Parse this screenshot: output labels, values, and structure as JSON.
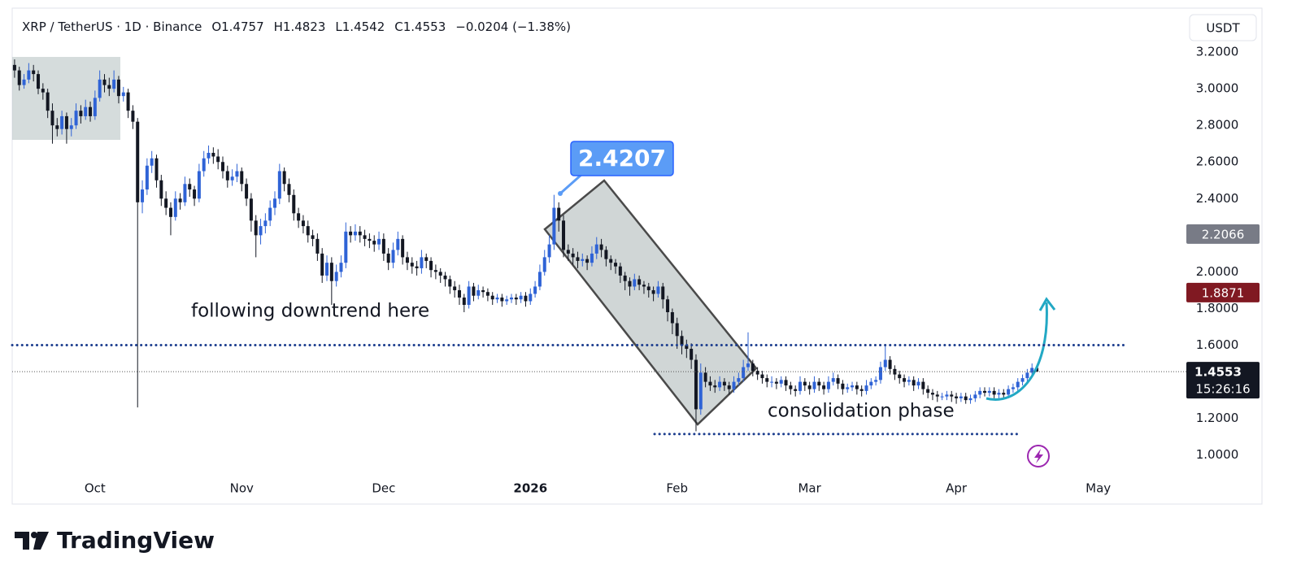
{
  "chart_data": {
    "type": "candlestick",
    "header": {
      "symbol": "XRP / TetherUS · 1D · Binance",
      "values": [
        {
          "label": "O",
          "value": 1.4757
        },
        {
          "label": "H",
          "value": 1.4823
        },
        {
          "label": "L",
          "value": 1.4542
        },
        {
          "label": "C",
          "value": 1.4553
        }
      ],
      "change": "−0.0204 (−1.38%)"
    },
    "currency": "USDT",
    "up_color": "#2f63d6",
    "down_color": "#131722",
    "xlim": [
      -0.5,
      234.9
    ],
    "xticks": [
      {
        "value": 17,
        "label": "Oct"
      },
      {
        "value": 48,
        "label": "Nov"
      },
      {
        "value": 78,
        "label": "Dec"
      },
      {
        "value": 109,
        "label": "2026"
      },
      {
        "value": 140,
        "label": "Feb"
      },
      {
        "value": 168,
        "label": "Mar"
      },
      {
        "value": 199,
        "label": "Apr"
      },
      {
        "value": 229,
        "label": "May"
      }
    ],
    "ylim": [
      0.91,
      3.44
    ],
    "yticks": [
      {
        "value": 1.0,
        "label": "1.0000"
      },
      {
        "value": 1.2,
        "label": "1.2000"
      },
      {
        "value": 1.4,
        "label": "1.4000"
      },
      {
        "value": 1.6,
        "label": "1.6000"
      },
      {
        "value": 1.8,
        "label": "1.8000"
      },
      {
        "value": 2.0,
        "label": "2.0000"
      },
      {
        "value": 2.2,
        "label": "2.2000"
      },
      {
        "value": 2.4,
        "label": "2.4000"
      },
      {
        "value": 2.6,
        "label": "2.6000"
      },
      {
        "value": 2.8,
        "label": "2.8000"
      },
      {
        "value": 3.0,
        "label": "3.0000"
      },
      {
        "value": 3.2,
        "label": "3.2000"
      }
    ],
    "grid": false,
    "ohlc": [
      [
        3.13,
        3.16,
        3.06,
        3.1
      ],
      [
        3.1,
        3.12,
        2.99,
        3.02
      ],
      [
        3.02,
        3.08,
        3.0,
        3.05
      ],
      [
        3.05,
        3.14,
        3.03,
        3.1
      ],
      [
        3.1,
        3.13,
        3.04,
        3.08
      ],
      [
        3.08,
        3.1,
        2.97,
        3.0
      ],
      [
        3.0,
        3.03,
        2.94,
        2.98
      ],
      [
        2.98,
        3.0,
        2.84,
        2.88
      ],
      [
        2.88,
        2.92,
        2.7,
        2.8
      ],
      [
        2.8,
        2.84,
        2.74,
        2.78
      ],
      [
        2.78,
        2.88,
        2.75,
        2.85
      ],
      [
        2.85,
        2.87,
        2.7,
        2.78
      ],
      [
        2.78,
        2.84,
        2.74,
        2.8
      ],
      [
        2.8,
        2.92,
        2.78,
        2.88
      ],
      [
        2.88,
        2.91,
        2.81,
        2.85
      ],
      [
        2.85,
        2.94,
        2.83,
        2.9
      ],
      [
        2.9,
        2.93,
        2.82,
        2.85
      ],
      [
        2.85,
        2.99,
        2.83,
        2.95
      ],
      [
        2.95,
        3.1,
        2.93,
        3.05
      ],
      [
        3.05,
        3.08,
        2.98,
        3.02
      ],
      [
        3.02,
        3.06,
        2.96,
        3.0
      ],
      [
        3.0,
        3.1,
        2.98,
        3.05
      ],
      [
        3.05,
        3.07,
        2.92,
        2.96
      ],
      [
        2.96,
        3.01,
        2.93,
        2.98
      ],
      [
        2.98,
        3.0,
        2.84,
        2.88
      ],
      [
        2.88,
        2.91,
        2.78,
        2.82
      ],
      [
        2.82,
        2.84,
        1.26,
        2.38
      ],
      [
        2.38,
        2.5,
        2.32,
        2.45
      ],
      [
        2.45,
        2.62,
        2.42,
        2.58
      ],
      [
        2.58,
        2.66,
        2.54,
        2.62
      ],
      [
        2.62,
        2.64,
        2.46,
        2.5
      ],
      [
        2.5,
        2.53,
        2.36,
        2.4
      ],
      [
        2.4,
        2.44,
        2.31,
        2.35
      ],
      [
        2.35,
        2.38,
        2.2,
        2.3
      ],
      [
        2.3,
        2.44,
        2.28,
        2.4
      ],
      [
        2.4,
        2.43,
        2.34,
        2.38
      ],
      [
        2.38,
        2.52,
        2.36,
        2.48
      ],
      [
        2.48,
        2.51,
        2.41,
        2.45
      ],
      [
        2.45,
        2.47,
        2.36,
        2.4
      ],
      [
        2.4,
        2.59,
        2.38,
        2.55
      ],
      [
        2.55,
        2.66,
        2.52,
        2.62
      ],
      [
        2.62,
        2.69,
        2.59,
        2.65
      ],
      [
        2.65,
        2.68,
        2.59,
        2.63
      ],
      [
        2.63,
        2.67,
        2.56,
        2.6
      ],
      [
        2.6,
        2.63,
        2.51,
        2.55
      ],
      [
        2.55,
        2.58,
        2.46,
        2.5
      ],
      [
        2.5,
        2.56,
        2.47,
        2.52
      ],
      [
        2.52,
        2.59,
        2.49,
        2.55
      ],
      [
        2.55,
        2.57,
        2.44,
        2.48
      ],
      [
        2.48,
        2.51,
        2.36,
        2.4
      ],
      [
        2.4,
        2.43,
        2.22,
        2.28
      ],
      [
        2.28,
        2.31,
        2.08,
        2.2
      ],
      [
        2.2,
        2.29,
        2.15,
        2.25
      ],
      [
        2.25,
        2.32,
        2.21,
        2.28
      ],
      [
        2.28,
        2.39,
        2.25,
        2.35
      ],
      [
        2.35,
        2.44,
        2.31,
        2.4
      ],
      [
        2.4,
        2.59,
        2.37,
        2.55
      ],
      [
        2.55,
        2.57,
        2.44,
        2.48
      ],
      [
        2.48,
        2.51,
        2.38,
        2.42
      ],
      [
        2.42,
        2.45,
        2.28,
        2.32
      ],
      [
        2.32,
        2.35,
        2.24,
        2.28
      ],
      [
        2.28,
        2.31,
        2.21,
        2.25
      ],
      [
        2.25,
        2.28,
        2.16,
        2.2
      ],
      [
        2.2,
        2.23,
        2.14,
        2.18
      ],
      [
        2.18,
        2.21,
        2.06,
        2.1
      ],
      [
        2.1,
        2.13,
        1.94,
        1.98
      ],
      [
        1.98,
        2.09,
        1.95,
        2.05
      ],
      [
        2.05,
        2.08,
        1.82,
        1.95
      ],
      [
        1.95,
        2.04,
        1.92,
        2.0
      ],
      [
        2.0,
        2.09,
        1.97,
        2.05
      ],
      [
        2.05,
        2.27,
        2.02,
        2.22
      ],
      [
        2.22,
        2.25,
        2.16,
        2.2
      ],
      [
        2.2,
        2.26,
        2.17,
        2.22
      ],
      [
        2.22,
        2.25,
        2.16,
        2.2
      ],
      [
        2.2,
        2.23,
        2.14,
        2.18
      ],
      [
        2.18,
        2.21,
        2.13,
        2.17
      ],
      [
        2.17,
        2.2,
        2.11,
        2.15
      ],
      [
        2.15,
        2.22,
        2.12,
        2.18
      ],
      [
        2.18,
        2.21,
        2.06,
        2.1
      ],
      [
        2.1,
        2.13,
        2.01,
        2.05
      ],
      [
        2.05,
        2.16,
        2.02,
        2.12
      ],
      [
        2.12,
        2.22,
        2.09,
        2.18
      ],
      [
        2.18,
        2.2,
        2.04,
        2.08
      ],
      [
        2.08,
        2.11,
        2.01,
        2.05
      ],
      [
        2.05,
        2.08,
        1.99,
        2.03
      ],
      [
        2.03,
        2.06,
        1.98,
        2.02
      ],
      [
        2.02,
        2.12,
        1.99,
        2.08
      ],
      [
        2.08,
        2.1,
        2.02,
        2.06
      ],
      [
        2.06,
        2.08,
        1.97,
        2.01
      ],
      [
        2.01,
        2.04,
        1.96,
        2.0
      ],
      [
        2.0,
        2.02,
        1.94,
        1.98
      ],
      [
        1.98,
        2.0,
        1.92,
        1.96
      ],
      [
        1.96,
        1.98,
        1.88,
        1.92
      ],
      [
        1.92,
        1.95,
        1.86,
        1.9
      ],
      [
        1.9,
        1.93,
        1.82,
        1.86
      ],
      [
        1.86,
        1.88,
        1.78,
        1.82
      ],
      [
        1.82,
        1.95,
        1.8,
        1.92
      ],
      [
        1.92,
        1.94,
        1.84,
        1.87
      ],
      [
        1.87,
        1.93,
        1.85,
        1.9
      ],
      [
        1.9,
        1.92,
        1.86,
        1.89
      ],
      [
        1.89,
        1.91,
        1.84,
        1.87
      ],
      [
        1.87,
        1.89,
        1.82,
        1.85
      ],
      [
        1.85,
        1.88,
        1.83,
        1.86
      ],
      [
        1.86,
        1.88,
        1.81,
        1.84
      ],
      [
        1.84,
        1.87,
        1.82,
        1.85
      ],
      [
        1.85,
        1.88,
        1.83,
        1.86
      ],
      [
        1.86,
        1.88,
        1.82,
        1.85
      ],
      [
        1.85,
        1.89,
        1.83,
        1.87
      ],
      [
        1.87,
        1.89,
        1.81,
        1.84
      ],
      [
        1.84,
        1.91,
        1.82,
        1.88
      ],
      [
        1.88,
        1.95,
        1.86,
        1.92
      ],
      [
        1.92,
        2.04,
        1.9,
        2.0
      ],
      [
        2.0,
        2.12,
        1.98,
        2.08
      ],
      [
        2.08,
        2.2,
        2.05,
        2.15
      ],
      [
        2.15,
        2.4207,
        2.12,
        2.35
      ],
      [
        2.35,
        2.38,
        2.22,
        2.28
      ],
      [
        2.28,
        2.31,
        2.08,
        2.12
      ],
      [
        2.12,
        2.15,
        2.06,
        2.1
      ],
      [
        2.1,
        2.13,
        2.04,
        2.08
      ],
      [
        2.08,
        2.11,
        2.02,
        2.06
      ],
      [
        2.06,
        2.1,
        2.03,
        2.07
      ],
      [
        2.07,
        2.09,
        2.01,
        2.05
      ],
      [
        2.05,
        2.14,
        2.03,
        2.1
      ],
      [
        2.1,
        2.19,
        2.07,
        2.15
      ],
      [
        2.15,
        2.18,
        2.08,
        2.12
      ],
      [
        2.12,
        2.14,
        2.03,
        2.07
      ],
      [
        2.07,
        2.09,
        2.01,
        2.05
      ],
      [
        2.05,
        2.07,
        1.99,
        2.03
      ],
      [
        2.03,
        2.05,
        1.94,
        1.98
      ],
      [
        1.98,
        2.0,
        1.9,
        1.95
      ],
      [
        1.95,
        1.97,
        1.87,
        1.92
      ],
      [
        1.92,
        1.99,
        1.9,
        1.96
      ],
      [
        1.96,
        1.98,
        1.9,
        1.93
      ],
      [
        1.93,
        1.95,
        1.88,
        1.92
      ],
      [
        1.92,
        1.94,
        1.86,
        1.9
      ],
      [
        1.9,
        1.92,
        1.84,
        1.88
      ],
      [
        1.88,
        1.95,
        1.86,
        1.92
      ],
      [
        1.92,
        1.94,
        1.8,
        1.85
      ],
      [
        1.85,
        1.87,
        1.73,
        1.78
      ],
      [
        1.78,
        1.8,
        1.66,
        1.72
      ],
      [
        1.72,
        1.75,
        1.58,
        1.65
      ],
      [
        1.65,
        1.68,
        1.55,
        1.6
      ],
      [
        1.6,
        1.63,
        1.53,
        1.58
      ],
      [
        1.58,
        1.61,
        1.47,
        1.52
      ],
      [
        1.52,
        1.55,
        1.13,
        1.25
      ],
      [
        1.25,
        1.5,
        1.22,
        1.45
      ],
      [
        1.45,
        1.48,
        1.37,
        1.4
      ],
      [
        1.4,
        1.43,
        1.35,
        1.38
      ],
      [
        1.38,
        1.41,
        1.34,
        1.37
      ],
      [
        1.37,
        1.43,
        1.35,
        1.4
      ],
      [
        1.4,
        1.42,
        1.35,
        1.38
      ],
      [
        1.38,
        1.4,
        1.33,
        1.36
      ],
      [
        1.36,
        1.43,
        1.34,
        1.4
      ],
      [
        1.4,
        1.45,
        1.38,
        1.42
      ],
      [
        1.42,
        1.52,
        1.4,
        1.48
      ],
      [
        1.48,
        1.67,
        1.46,
        1.5
      ],
      [
        1.5,
        1.52,
        1.43,
        1.46
      ],
      [
        1.46,
        1.48,
        1.41,
        1.44
      ],
      [
        1.44,
        1.46,
        1.39,
        1.42
      ],
      [
        1.42,
        1.44,
        1.37,
        1.4
      ],
      [
        1.4,
        1.43,
        1.37,
        1.4
      ],
      [
        1.4,
        1.42,
        1.36,
        1.39
      ],
      [
        1.39,
        1.43,
        1.37,
        1.41
      ],
      [
        1.41,
        1.43,
        1.35,
        1.38
      ],
      [
        1.38,
        1.4,
        1.33,
        1.36
      ],
      [
        1.36,
        1.38,
        1.32,
        1.35
      ],
      [
        1.35,
        1.43,
        1.33,
        1.4
      ],
      [
        1.4,
        1.42,
        1.35,
        1.38
      ],
      [
        1.38,
        1.4,
        1.33,
        1.36
      ],
      [
        1.36,
        1.43,
        1.34,
        1.4
      ],
      [
        1.4,
        1.42,
        1.35,
        1.38
      ],
      [
        1.38,
        1.4,
        1.33,
        1.36
      ],
      [
        1.36,
        1.43,
        1.34,
        1.4
      ],
      [
        1.4,
        1.45,
        1.38,
        1.42
      ],
      [
        1.42,
        1.44,
        1.36,
        1.39
      ],
      [
        1.39,
        1.41,
        1.33,
        1.36
      ],
      [
        1.36,
        1.39,
        1.34,
        1.37
      ],
      [
        1.37,
        1.4,
        1.35,
        1.38
      ],
      [
        1.38,
        1.4,
        1.33,
        1.36
      ],
      [
        1.36,
        1.38,
        1.32,
        1.35
      ],
      [
        1.35,
        1.41,
        1.33,
        1.38
      ],
      [
        1.38,
        1.42,
        1.36,
        1.4
      ],
      [
        1.4,
        1.43,
        1.38,
        1.41
      ],
      [
        1.41,
        1.51,
        1.39,
        1.48
      ],
      [
        1.48,
        1.6,
        1.46,
        1.52
      ],
      [
        1.52,
        1.54,
        1.44,
        1.47
      ],
      [
        1.47,
        1.49,
        1.41,
        1.44
      ],
      [
        1.44,
        1.46,
        1.39,
        1.42
      ],
      [
        1.42,
        1.44,
        1.37,
        1.4
      ],
      [
        1.4,
        1.43,
        1.38,
        1.41
      ],
      [
        1.41,
        1.43,
        1.35,
        1.38
      ],
      [
        1.38,
        1.42,
        1.36,
        1.4
      ],
      [
        1.4,
        1.42,
        1.33,
        1.36
      ],
      [
        1.36,
        1.38,
        1.31,
        1.34
      ],
      [
        1.34,
        1.36,
        1.3,
        1.33
      ],
      [
        1.33,
        1.35,
        1.29,
        1.32
      ],
      [
        1.32,
        1.34,
        1.3,
        1.32
      ],
      [
        1.32,
        1.35,
        1.3,
        1.33
      ],
      [
        1.33,
        1.35,
        1.29,
        1.32
      ],
      [
        1.32,
        1.34,
        1.28,
        1.31
      ],
      [
        1.31,
        1.34,
        1.29,
        1.32
      ],
      [
        1.32,
        1.34,
        1.28,
        1.3
      ],
      [
        1.3,
        1.33,
        1.28,
        1.31
      ],
      [
        1.31,
        1.35,
        1.29,
        1.33
      ],
      [
        1.33,
        1.37,
        1.31,
        1.35
      ],
      [
        1.35,
        1.37,
        1.32,
        1.34
      ],
      [
        1.34,
        1.37,
        1.32,
        1.35
      ],
      [
        1.35,
        1.37,
        1.31,
        1.33
      ],
      [
        1.33,
        1.36,
        1.31,
        1.34
      ],
      [
        1.34,
        1.36,
        1.31,
        1.33
      ],
      [
        1.33,
        1.38,
        1.31,
        1.36
      ],
      [
        1.36,
        1.39,
        1.34,
        1.37
      ],
      [
        1.37,
        1.42,
        1.35,
        1.4
      ],
      [
        1.4,
        1.44,
        1.38,
        1.42
      ],
      [
        1.42,
        1.47,
        1.4,
        1.45
      ],
      [
        1.45,
        1.5,
        1.43,
        1.4757
      ],
      [
        1.4757,
        1.4823,
        1.4542,
        1.4553
      ]
    ],
    "price_tags": [
      {
        "value": 2.2066,
        "color": "#787b86"
      },
      {
        "value": 1.8871,
        "color": "#801922"
      }
    ],
    "last_price": {
      "value": 1.4553,
      "countdown": "15:26:16",
      "color": "#131722"
    },
    "callout": {
      "value": 2.4207,
      "color": "#5b9cf6"
    },
    "levels": [
      1.6,
      1.115
    ],
    "annotations": [
      "following downtrend here",
      "consolidation phase"
    ]
  },
  "brand": "TradingView"
}
